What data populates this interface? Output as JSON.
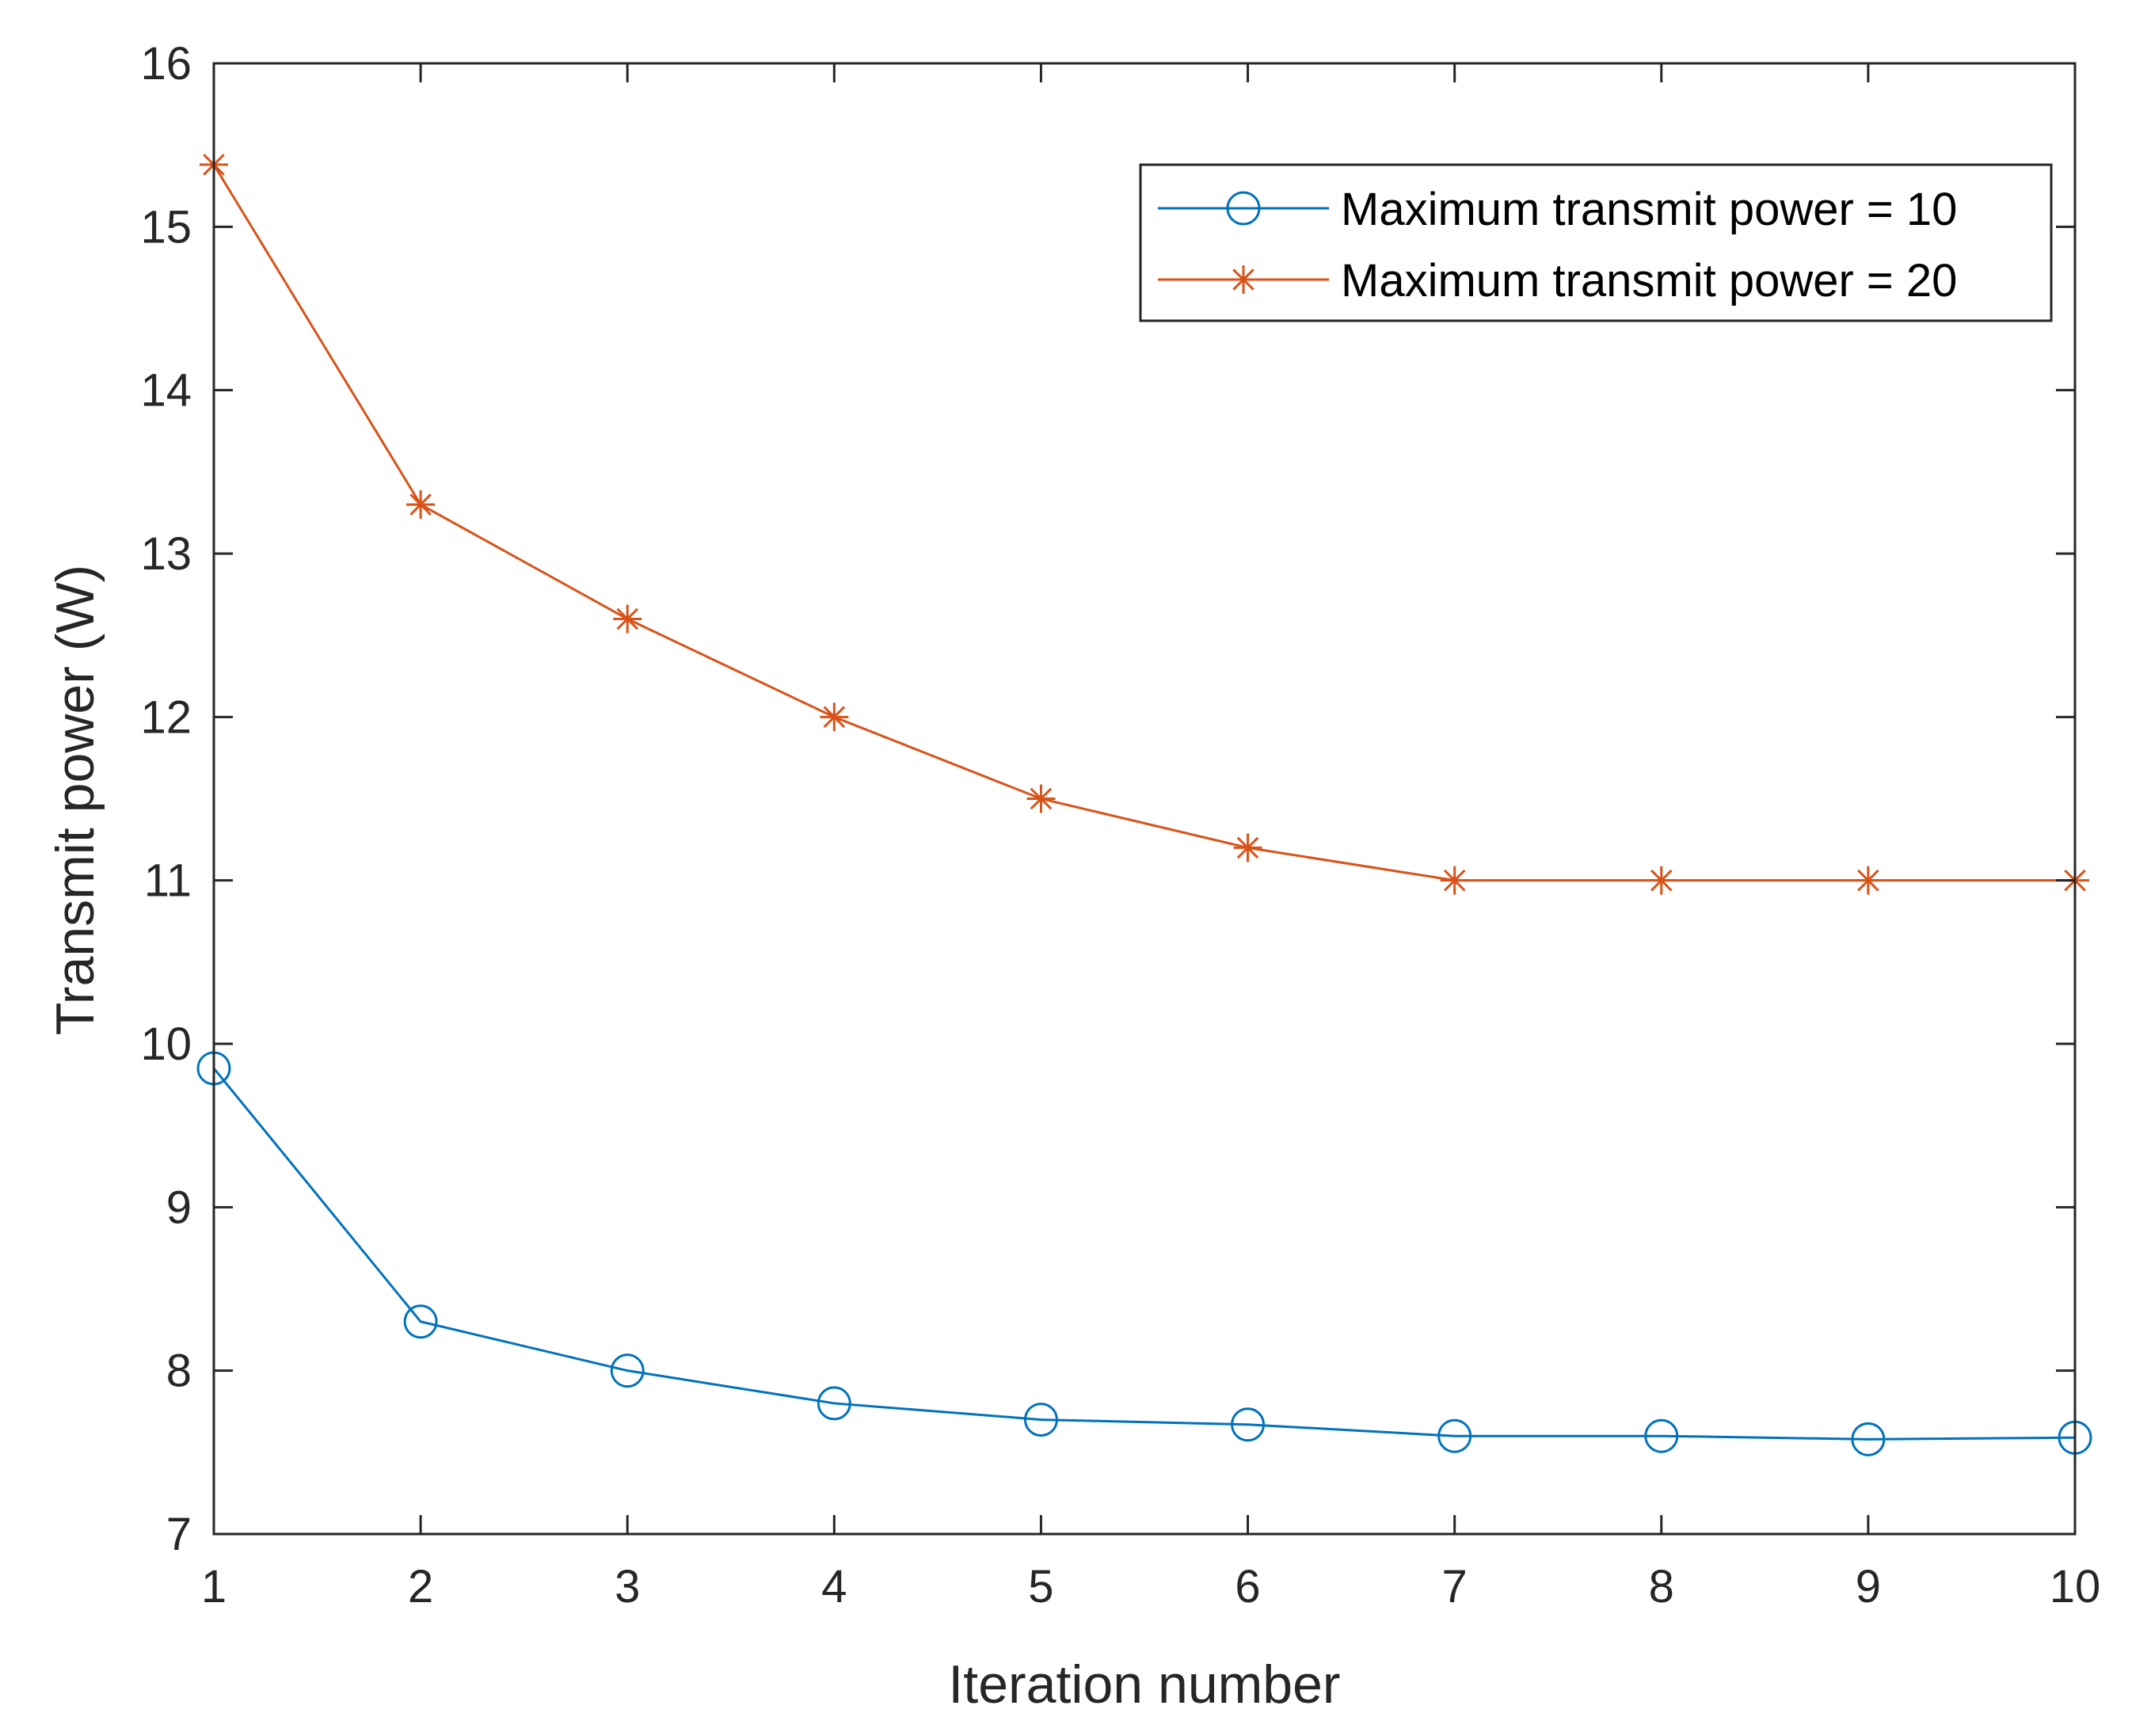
{
  "chart_data": {
    "type": "line",
    "title": "",
    "xlabel": "Iteration number",
    "ylabel": "Transmit power (W)",
    "xlim": [
      1,
      10
    ],
    "ylim": [
      7,
      16
    ],
    "x": [
      1,
      2,
      3,
      4,
      5,
      6,
      7,
      8,
      9,
      10
    ],
    "xticks": [
      1,
      2,
      3,
      4,
      5,
      6,
      7,
      8,
      9,
      10
    ],
    "yticks": [
      7,
      8,
      9,
      10,
      11,
      12,
      13,
      14,
      15,
      16
    ],
    "grid": false,
    "legend_position": "top-right",
    "series": [
      {
        "name": "Maximum transmit power = 10",
        "marker": "circle",
        "color": "#0072BD",
        "values": [
          9.85,
          8.3,
          8.0,
          7.8,
          7.7,
          7.67,
          7.6,
          7.6,
          7.58,
          7.59
        ]
      },
      {
        "name": "Maximum transmit power = 20",
        "marker": "asterisk",
        "color": "#D95319",
        "values": [
          15.38,
          13.3,
          12.6,
          12.0,
          11.5,
          11.2,
          11.0,
          11.0,
          11.0,
          11.0
        ]
      }
    ]
  }
}
